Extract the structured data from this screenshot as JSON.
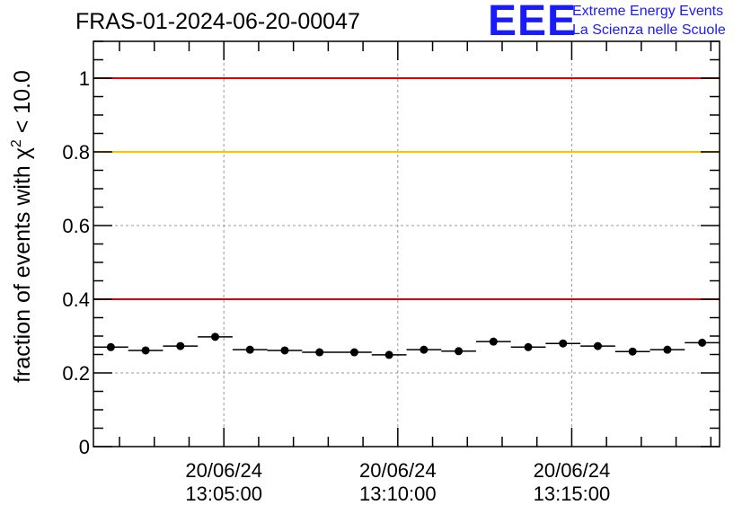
{
  "header": {
    "title": "FRAS-01-2024-06-20-00047",
    "logo_text": "EEE",
    "logo_line1": "Extreme Energy Events",
    "logo_line2": "La Scienza nelle Scuole"
  },
  "colors": {
    "red_line": "#e00000",
    "yellow_line": "#ffc000",
    "logo": "#1a1aff",
    "marker": "#000000"
  },
  "chart_data": {
    "type": "scatter",
    "ylabel_prefix": "fraction of events with χ",
    "ylabel_sup": "2",
    "ylabel_suffix": " < 10.0",
    "ylim": [
      0,
      1.1
    ],
    "yticks": [
      0,
      0.2,
      0.4,
      0.6,
      0.8,
      1
    ],
    "ytick_labels": [
      "0",
      "0.2",
      "0.4",
      "0.6",
      "0.8",
      "1"
    ],
    "xlim_seconds": [
      0,
      1080
    ],
    "xtick_seconds": [
      225,
      525,
      825
    ],
    "xtick_labels_line1": [
      "20/06/24",
      "20/06/24",
      "20/06/24"
    ],
    "xtick_labels_line2": [
      "13:05:00",
      "13:10:00",
      "13:15:00"
    ],
    "grid": true,
    "reference_lines": [
      {
        "y": 1.0,
        "color": "red"
      },
      {
        "y": 0.8,
        "color": "yellow"
      },
      {
        "y": 0.4,
        "color": "red"
      }
    ],
    "bin_width_seconds": 60,
    "points": [
      {
        "x": 30,
        "y": 0.27
      },
      {
        "x": 90,
        "y": 0.261
      },
      {
        "x": 150,
        "y": 0.273
      },
      {
        "x": 210,
        "y": 0.298
      },
      {
        "x": 270,
        "y": 0.263
      },
      {
        "x": 330,
        "y": 0.261
      },
      {
        "x": 390,
        "y": 0.256
      },
      {
        "x": 450,
        "y": 0.256
      },
      {
        "x": 510,
        "y": 0.249
      },
      {
        "x": 570,
        "y": 0.263
      },
      {
        "x": 630,
        "y": 0.259
      },
      {
        "x": 690,
        "y": 0.285
      },
      {
        "x": 750,
        "y": 0.27
      },
      {
        "x": 810,
        "y": 0.28
      },
      {
        "x": 870,
        "y": 0.273
      },
      {
        "x": 930,
        "y": 0.258
      },
      {
        "x": 990,
        "y": 0.263
      },
      {
        "x": 1050,
        "y": 0.282
      }
    ]
  }
}
